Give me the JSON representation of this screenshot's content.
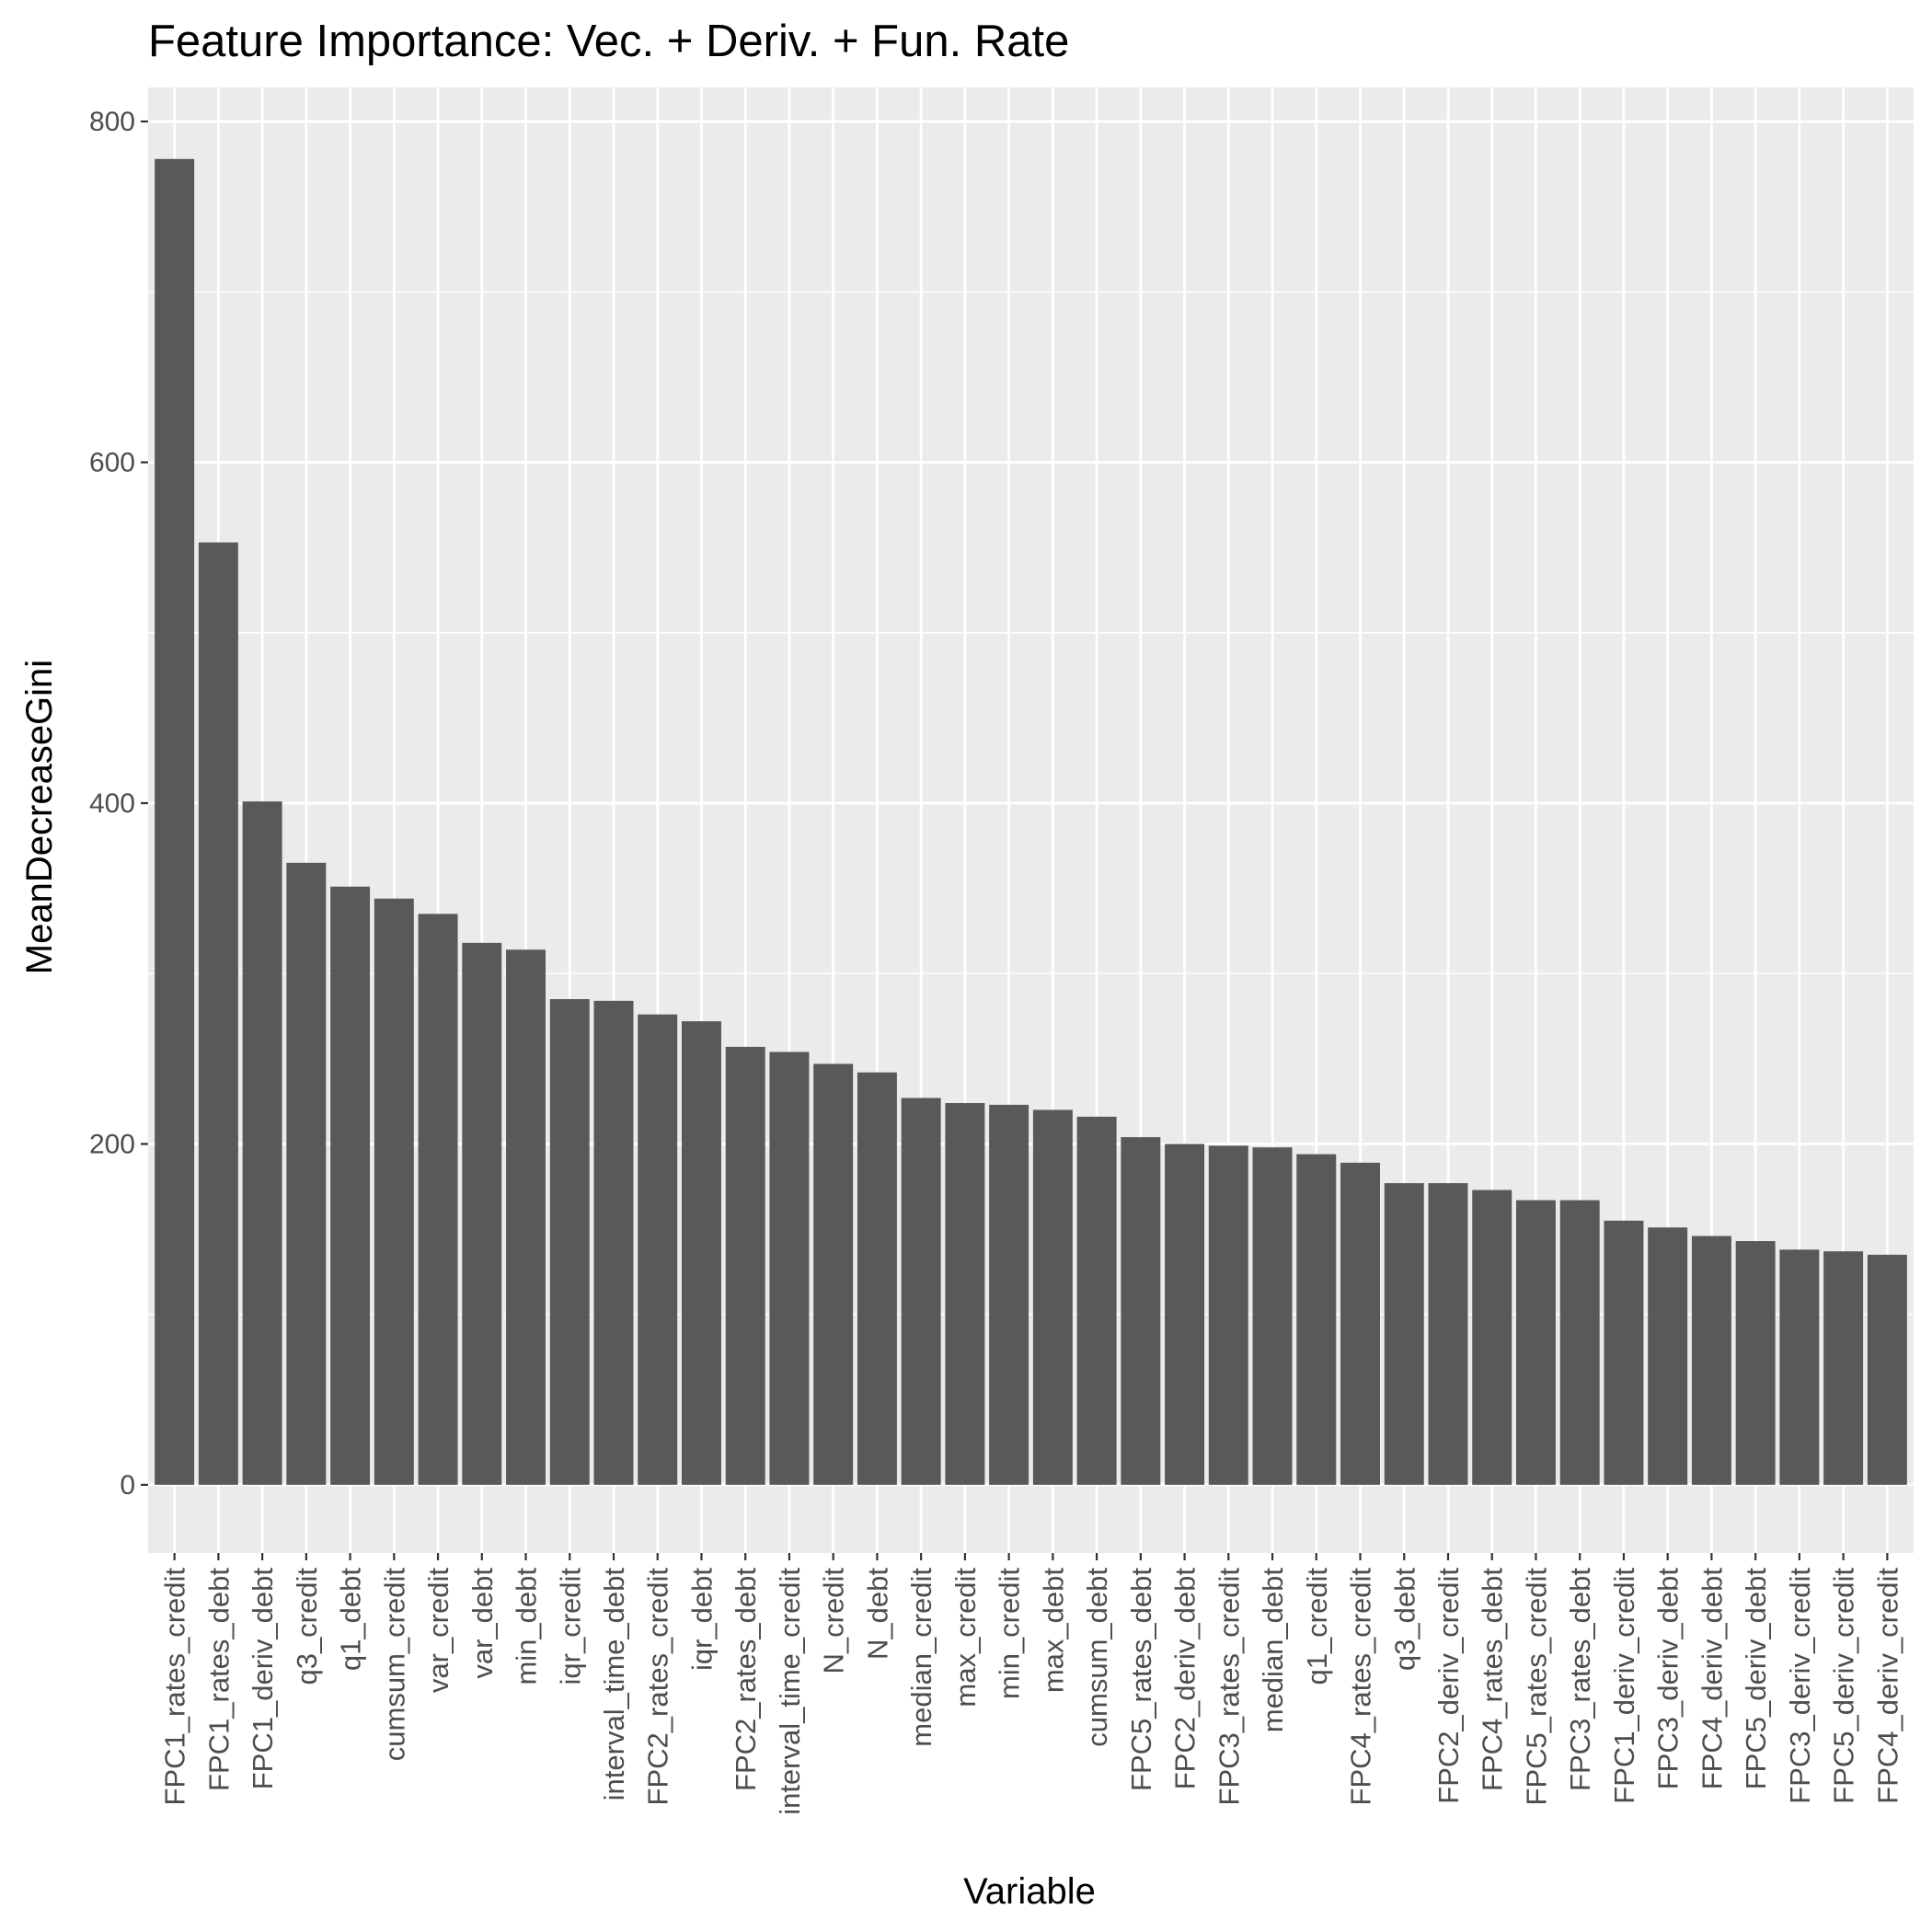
{
  "chart_data": {
    "type": "bar",
    "title": "Feature Importance: Vec. + Deriv. + Fun. Rate",
    "xlabel": "Variable",
    "ylabel": "MeanDecreaseGini",
    "ylim": [
      -40,
      820
    ],
    "yticks": [
      0,
      200,
      400,
      600,
      800
    ],
    "grid": true,
    "bar_color": "#595959",
    "panel_background": "#ebebeb",
    "grid_color": "#ffffff",
    "categories": [
      "FPC1_rates_credit",
      "FPC1_rates_debt",
      "FPC1_deriv_debt",
      "q3_credit",
      "q1_debt",
      "cumsum_credit",
      "var_credit",
      "var_debt",
      "min_debt",
      "iqr_credit",
      "interval_time_debt",
      "FPC2_rates_credit",
      "iqr_debt",
      "FPC2_rates_debt",
      "interval_time_credit",
      "N_credit",
      "N_debt",
      "median_credit",
      "max_credit",
      "min_credit",
      "max_debt",
      "cumsum_debt",
      "FPC5_rates_debt",
      "FPC2_deriv_debt",
      "FPC3_rates_credit",
      "median_debt",
      "q1_credit",
      "FPC4_rates_credit",
      "q3_debt",
      "FPC2_deriv_credit",
      "FPC4_rates_debt",
      "FPC5_rates_credit",
      "FPC3_rates_debt",
      "FPC1_deriv_credit",
      "FPC3_deriv_debt",
      "FPC4_deriv_debt",
      "FPC5_deriv_debt",
      "FPC3_deriv_credit",
      "FPC5_deriv_credit",
      "FPC4_deriv_credit"
    ],
    "values": [
      778,
      553,
      401,
      365,
      351,
      344,
      335,
      318,
      314,
      285,
      284,
      276,
      272,
      257,
      254,
      247,
      242,
      227,
      224,
      223,
      220,
      216,
      204,
      200,
      199,
      198,
      194,
      189,
      177,
      177,
      173,
      167,
      167,
      155,
      151,
      146,
      143,
      138,
      137,
      135
    ]
  }
}
